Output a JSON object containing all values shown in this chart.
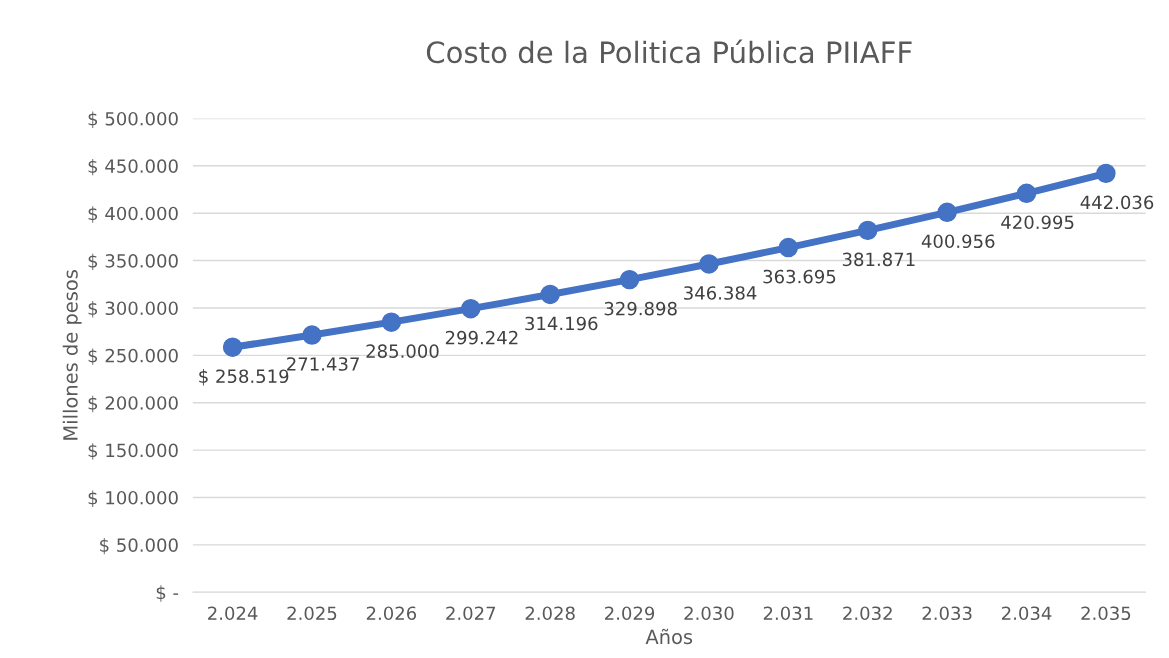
{
  "chart_data": {
    "type": "line",
    "title": "Costo de la Politica Pública PIIAFF",
    "xlabel": "Años",
    "ylabel": "Millones de pesos",
    "categories": [
      "2.024",
      "2.025",
      "2.026",
      "2.027",
      "2.028",
      "2.029",
      "2.030",
      "2.031",
      "2.032",
      "2.033",
      "2.034",
      "2.035"
    ],
    "series": [
      {
        "color": "#4472c4",
        "values": [
          258519,
          271437,
          285000,
          299242,
          314196,
          329898,
          346384,
          363695,
          381871,
          400956,
          420995,
          442036
        ],
        "value_labels": [
          "$ 258.519",
          "271.437",
          "285.000",
          "299.242",
          "314.196",
          "329.898",
          "346.384",
          "363.695",
          "381.871",
          "400.956",
          "420.995",
          "442.036"
        ]
      }
    ],
    "ylim": [
      0,
      500000
    ],
    "yticks": [
      {
        "value": 0,
        "label": "$ -"
      },
      {
        "value": 50000,
        "label": "$ 50.000"
      },
      {
        "value": 100000,
        "label": "$ 100.000"
      },
      {
        "value": 150000,
        "label": "$ 150.000"
      },
      {
        "value": 200000,
        "label": "$ 200.000"
      },
      {
        "value": 250000,
        "label": "$ 250.000"
      },
      {
        "value": 300000,
        "label": "$ 300.000"
      },
      {
        "value": 350000,
        "label": "$ 350.000"
      },
      {
        "value": 400000,
        "label": "$ 400.000"
      },
      {
        "value": 450000,
        "label": "$ 450.000"
      },
      {
        "value": 500000,
        "label": "$ 500.000"
      }
    ],
    "grid": "y",
    "legend": false,
    "marker": "circle",
    "line_style": "solid"
  }
}
